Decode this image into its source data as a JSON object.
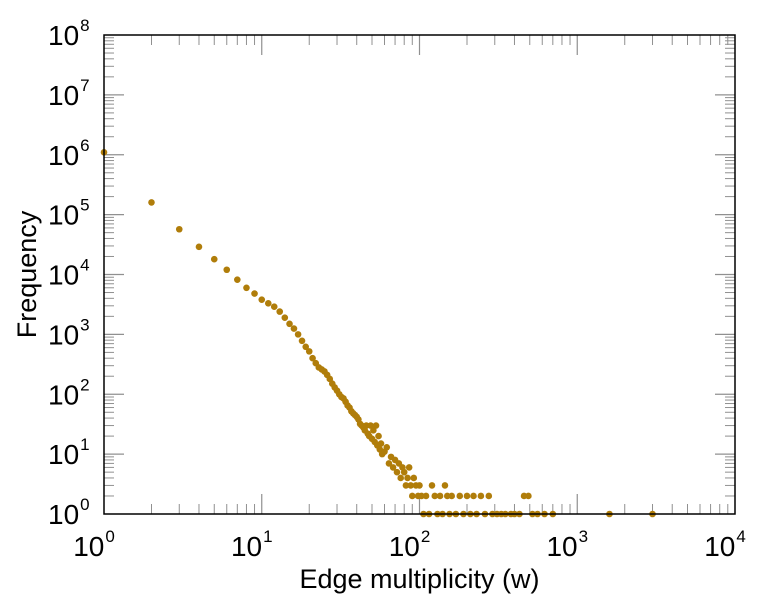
{
  "chart_data": {
    "type": "scatter",
    "title": "",
    "xlabel": "Edge multiplicity (w)",
    "ylabel": "Frequency",
    "x_scale": "log",
    "y_scale": "log",
    "xlim": [
      1,
      10000
    ],
    "ylim": [
      1,
      100000000
    ],
    "x_ticks": [
      {
        "base": "10",
        "exp": "0"
      },
      {
        "base": "10",
        "exp": "1"
      },
      {
        "base": "10",
        "exp": "2"
      },
      {
        "base": "10",
        "exp": "3"
      },
      {
        "base": "10",
        "exp": "4"
      }
    ],
    "y_ticks": [
      {
        "base": "10",
        "exp": "0"
      },
      {
        "base": "10",
        "exp": "1"
      },
      {
        "base": "10",
        "exp": "2"
      },
      {
        "base": "10",
        "exp": "3"
      },
      {
        "base": "10",
        "exp": "4"
      },
      {
        "base": "10",
        "exp": "5"
      },
      {
        "base": "10",
        "exp": "6"
      },
      {
        "base": "10",
        "exp": "7"
      },
      {
        "base": "10",
        "exp": "8"
      }
    ],
    "grid": false,
    "legend": "none",
    "marker_color": "#b07d0a",
    "series": [
      {
        "points": [
          [
            1,
            1100000
          ],
          [
            2,
            160000
          ],
          [
            3,
            57000
          ],
          [
            4,
            29000
          ],
          [
            5,
            18000
          ],
          [
            6,
            12000
          ],
          [
            7,
            8200
          ],
          [
            8,
            6000
          ],
          [
            9,
            4800
          ],
          [
            10,
            3800
          ],
          [
            11,
            3300
          ],
          [
            12,
            2900
          ],
          [
            13,
            2400
          ],
          [
            14,
            1900
          ],
          [
            15,
            1500
          ],
          [
            16,
            1250
          ],
          [
            17,
            1000
          ],
          [
            18,
            780
          ],
          [
            19,
            620
          ],
          [
            20,
            520
          ],
          [
            21,
            400
          ],
          [
            22,
            330
          ],
          [
            23,
            280
          ],
          [
            24,
            260
          ],
          [
            25,
            240
          ],
          [
            26,
            210
          ],
          [
            27,
            180
          ],
          [
            28,
            150
          ],
          [
            29,
            130
          ],
          [
            30,
            115
          ],
          [
            31,
            100
          ],
          [
            32,
            90
          ],
          [
            33,
            85
          ],
          [
            34,
            75
          ],
          [
            35,
            65
          ],
          [
            36,
            60
          ],
          [
            37,
            52
          ],
          [
            38,
            48
          ],
          [
            39,
            45
          ],
          [
            40,
            42
          ],
          [
            41,
            38
          ],
          [
            42,
            32
          ],
          [
            43,
            30
          ],
          [
            44,
            28
          ],
          [
            45,
            25
          ],
          [
            46,
            30
          ],
          [
            47,
            22
          ],
          [
            48,
            20
          ],
          [
            49,
            30
          ],
          [
            50,
            18
          ],
          [
            51,
            25
          ],
          [
            52,
            16
          ],
          [
            53,
            30
          ],
          [
            54,
            14
          ],
          [
            55,
            20
          ],
          [
            56,
            12
          ],
          [
            57,
            15
          ],
          [
            58,
            10
          ],
          [
            60,
            11
          ],
          [
            62,
            13
          ],
          [
            64,
            7
          ],
          [
            66,
            9
          ],
          [
            68,
            6
          ],
          [
            70,
            8
          ],
          [
            72,
            5
          ],
          [
            74,
            7
          ],
          [
            76,
            4
          ],
          [
            78,
            6
          ],
          [
            80,
            5
          ],
          [
            82,
            3
          ],
          [
            84,
            4
          ],
          [
            86,
            6
          ],
          [
            88,
            3
          ],
          [
            90,
            2
          ],
          [
            92,
            4
          ],
          [
            95,
            3
          ],
          [
            98,
            2
          ],
          [
            100,
            3
          ],
          [
            103,
            2
          ],
          [
            106,
            1
          ],
          [
            110,
            2
          ],
          [
            115,
            1
          ],
          [
            120,
            3
          ],
          [
            125,
            2
          ],
          [
            130,
            1
          ],
          [
            135,
            2
          ],
          [
            140,
            1
          ],
          [
            145,
            3
          ],
          [
            150,
            2
          ],
          [
            155,
            1
          ],
          [
            160,
            2
          ],
          [
            170,
            1
          ],
          [
            180,
            2
          ],
          [
            190,
            1
          ],
          [
            200,
            2
          ],
          [
            210,
            1
          ],
          [
            220,
            2
          ],
          [
            230,
            1
          ],
          [
            245,
            2
          ],
          [
            260,
            1
          ],
          [
            275,
            2
          ],
          [
            290,
            1
          ],
          [
            310,
            1
          ],
          [
            330,
            1
          ],
          [
            350,
            1
          ],
          [
            380,
            1
          ],
          [
            400,
            1
          ],
          [
            430,
            1
          ],
          [
            460,
            2
          ],
          [
            490,
            2
          ],
          [
            520,
            1
          ],
          [
            560,
            1
          ],
          [
            620,
            1
          ],
          [
            700,
            1
          ],
          [
            1600,
            1
          ],
          [
            3000,
            1
          ]
        ]
      }
    ]
  }
}
